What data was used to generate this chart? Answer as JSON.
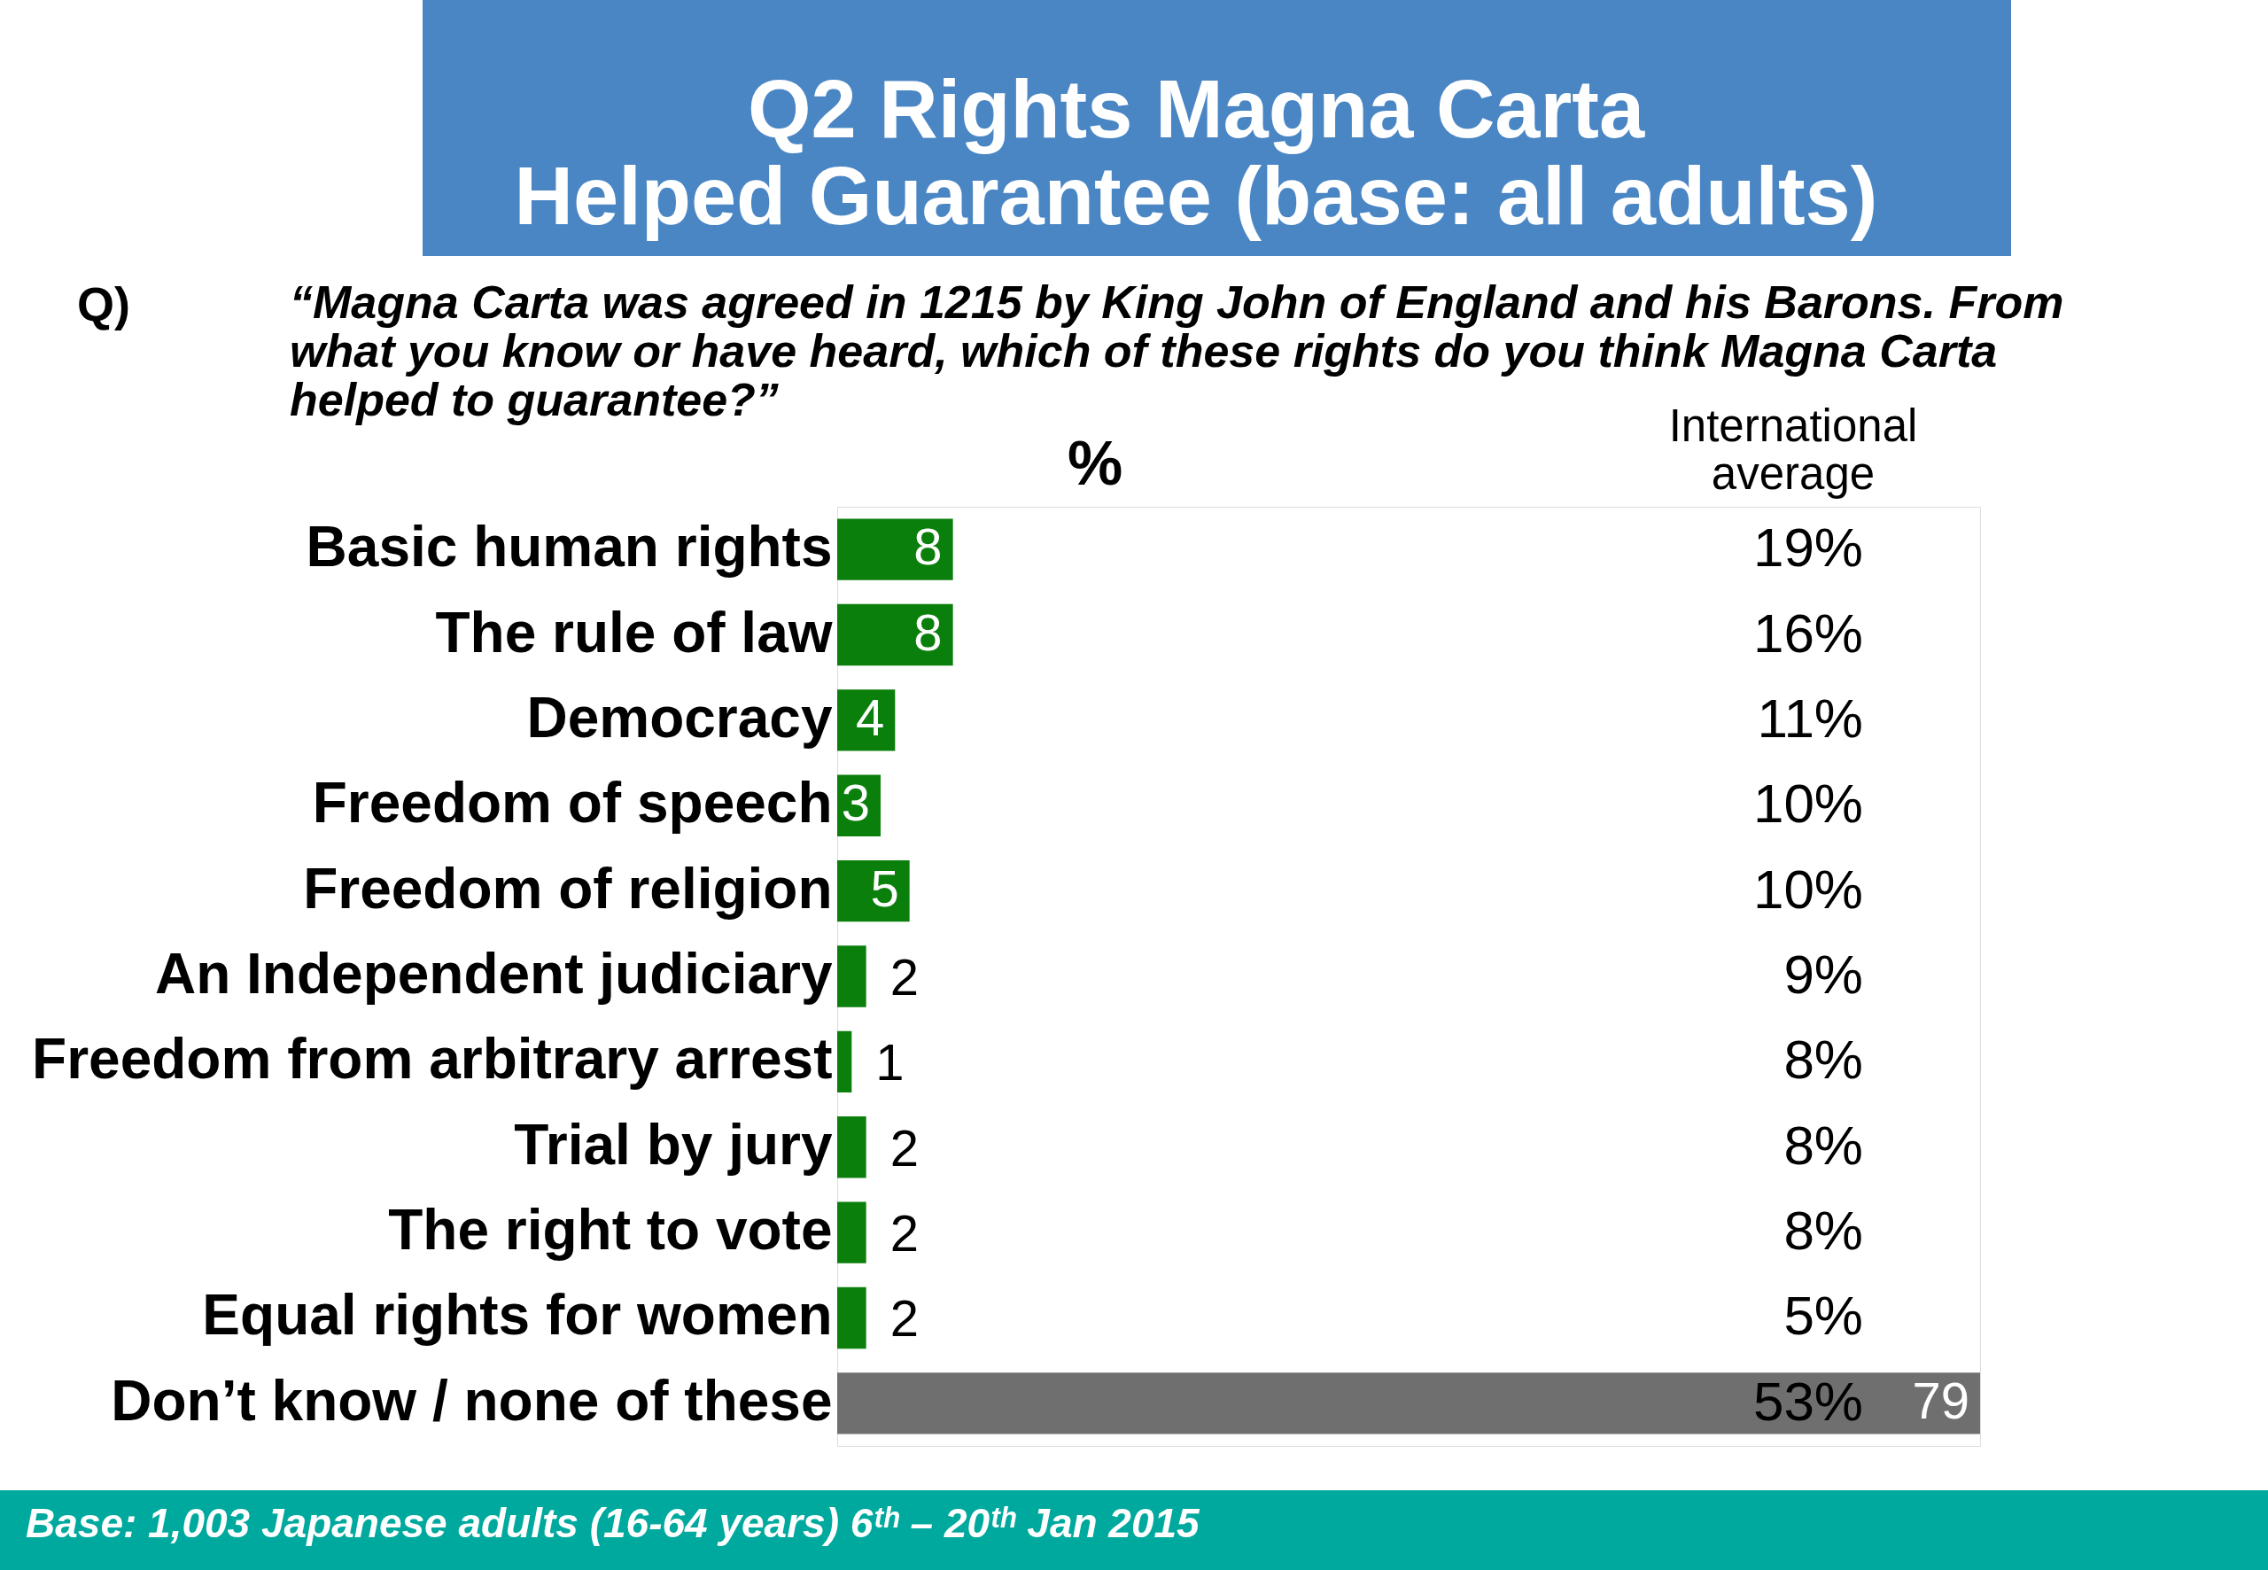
{
  "chart_data": {
    "type": "bar",
    "orientation": "horizontal",
    "title": "Q2 Rights Magna Carta Helped Guarantee (base: all adults)",
    "xlabel": "%",
    "categories": [
      "Basic human rights",
      "The rule of law",
      "Democracy",
      "Freedom of speech",
      "Freedom of religion",
      "An Independent judiciary",
      "Freedom from arbitrary arrest",
      "Trial by jury",
      "The right to vote",
      "Equal rights for women",
      "Don’t know / none of these"
    ],
    "values": [
      8,
      8,
      4,
      3,
      5,
      2,
      1,
      2,
      2,
      2,
      79
    ],
    "colors": [
      "#0b7f0b",
      "#0b7f0b",
      "#0b7f0b",
      "#0b7f0b",
      "#0b7f0b",
      "#0b7f0b",
      "#0b7f0b",
      "#0b7f0b",
      "#0b7f0b",
      "#0b7f0b",
      "#6f6f6f"
    ],
    "data_labels": true,
    "annotations": [
      "Q)",
      "“Magna Carta was agreed in 1215 by King John of England and his Barons. From what you know or have heard, which of these rights do you think Magna Carta helped to guarantee?”",
      "International average",
      "Base: 1,003 Japanese adults (16-64 years) 6ᵗʰ – 20ᵗʰ Jan 2015",
      "19%",
      "16%",
      "11%",
      "10%",
      "10%",
      "9%",
      "8%",
      "8%",
      "8%",
      "5%",
      "53%"
    ]
  }
}
